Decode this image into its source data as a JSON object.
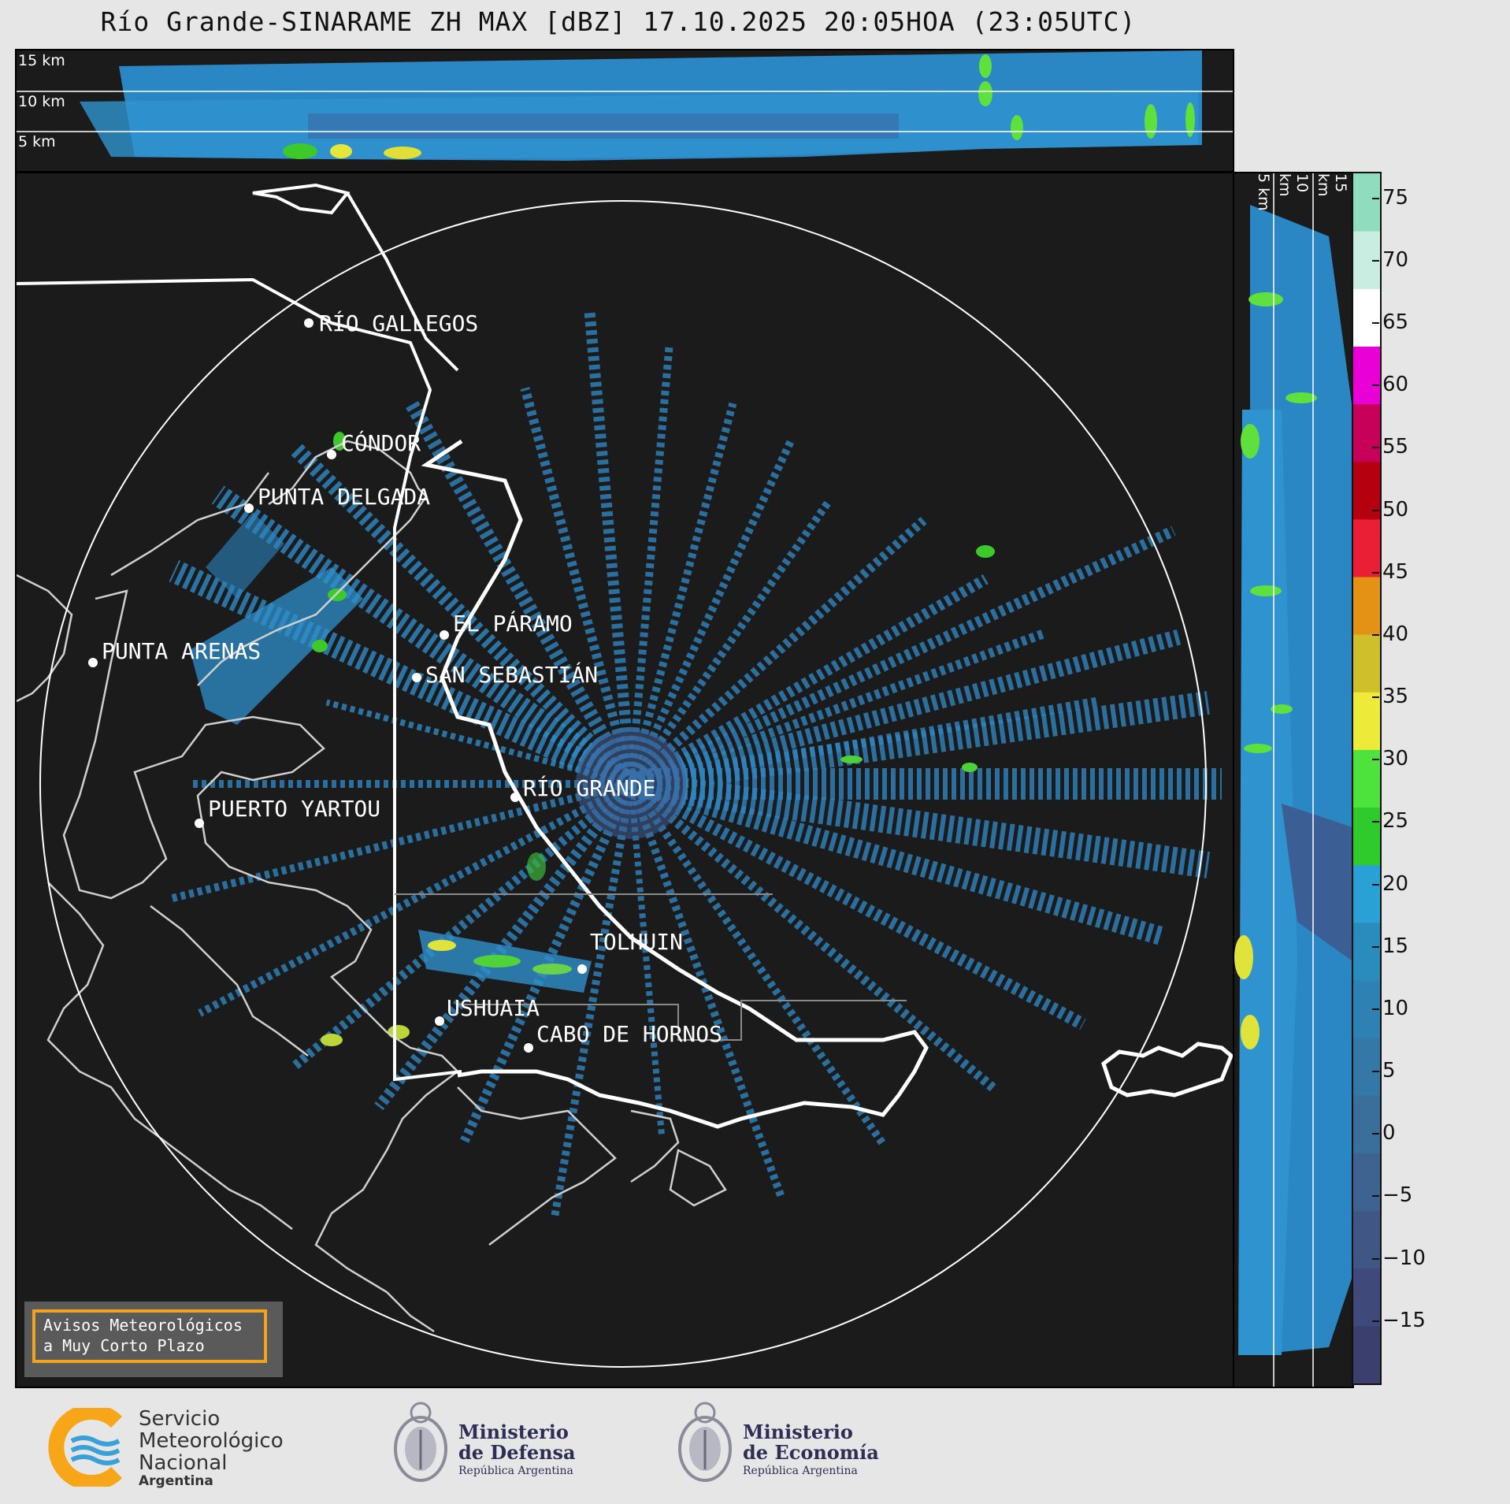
{
  "title": "Río Grande-SINARAME ZH MAX [dBZ] 17.10.2025 20:05HOA (23:05UTC)",
  "top_levels": [
    "15 km",
    "10 km",
    "5 km"
  ],
  "side_levels": [
    "5 km",
    "10 km",
    "15 km"
  ],
  "places": [
    {
      "name": "RÍO GALLEGOS"
    },
    {
      "name": "CÓNDOR"
    },
    {
      "name": "PUNTA DELGADA"
    },
    {
      "name": "EL PÁRAMO"
    },
    {
      "name": "PUNTA ARENAS"
    },
    {
      "name": "SAN SEBASTIÁN"
    },
    {
      "name": "RÍO GRANDE"
    },
    {
      "name": "PUERTO YARTOU"
    },
    {
      "name": "TOLHUIN"
    },
    {
      "name": "USHUAIA"
    },
    {
      "name": "CABO DE HORNOS"
    }
  ],
  "colorbar": {
    "ticks": [
      "75",
      "70",
      "65",
      "60",
      "55",
      "50",
      "45",
      "40",
      "35",
      "30",
      "25",
      "20",
      "15",
      "10",
      "5",
      "0",
      "−5",
      "−10",
      "−15"
    ],
    "range": [
      -20,
      77
    ],
    "units": "dBZ",
    "colors": [
      "#3b3f6e",
      "#3f4a7a",
      "#405786",
      "#3f6391",
      "#3a6f9c",
      "#3478a8",
      "#2e82b3",
      "#2a8cbd",
      "#29a1d4",
      "#2fcb2c",
      "#4ee23d",
      "#eeea3a",
      "#cfbf2a",
      "#e49216",
      "#ea1f36",
      "#b4000f",
      "#c7005a",
      "#e800d6",
      "#ffffff",
      "#c9ede0",
      "#8fddbe"
    ]
  },
  "warning": {
    "line1": "Avisos Meteorológicos",
    "line2": "a Muy Corto Plazo"
  },
  "logos": {
    "smn": {
      "line1": "Servicio",
      "line2": "Meteorológico",
      "line3": "Nacional",
      "line4": "Argentina"
    },
    "defensa": {
      "line1": "Ministerio",
      "line2": "de Defensa",
      "line3": "República Argentina"
    },
    "economia": {
      "line1": "Ministerio",
      "line2": "de Economía",
      "line3": "República Argentina"
    }
  }
}
